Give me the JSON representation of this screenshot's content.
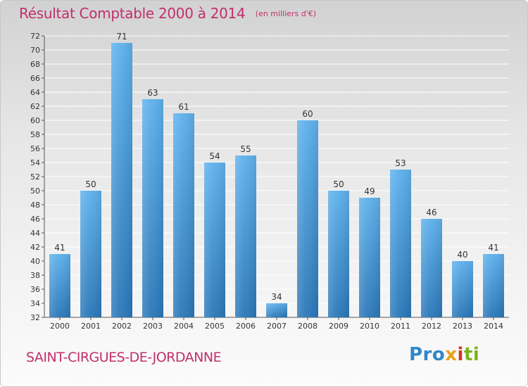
{
  "header": {
    "title": "Résultat Comptable 2000 à 2014",
    "subtitle": "(en milliers d'€)"
  },
  "footer": {
    "commune": "SAINT-CIRGUES-DE-JORDANNE",
    "logo": "Proxiti",
    "logo_parts": [
      "Pro",
      "x",
      "i",
      "ti"
    ]
  },
  "colors": {
    "title": "#c0306b",
    "bar_top": "#5eb1ec",
    "bar_bottom": "#2a77b8",
    "grid": "#ffffff"
  },
  "chart_data": {
    "type": "bar",
    "title": "Résultat Comptable 2000 à 2014",
    "subtitle": "(en milliers d'€)",
    "categories": [
      "2000",
      "2001",
      "2002",
      "2003",
      "2004",
      "2005",
      "2006",
      "2007",
      "2008",
      "2009",
      "2010",
      "2011",
      "2012",
      "2013",
      "2014"
    ],
    "values": [
      41,
      50,
      71,
      63,
      61,
      54,
      55,
      34,
      60,
      50,
      49,
      53,
      46,
      40,
      41
    ],
    "ylim": [
      32,
      72
    ],
    "yticks": [
      32,
      34,
      36,
      38,
      40,
      42,
      44,
      46,
      48,
      50,
      52,
      54,
      56,
      58,
      60,
      62,
      64,
      66,
      68,
      70,
      72
    ],
    "grid": true,
    "data_labels": true,
    "xlabel": "",
    "ylabel": ""
  }
}
